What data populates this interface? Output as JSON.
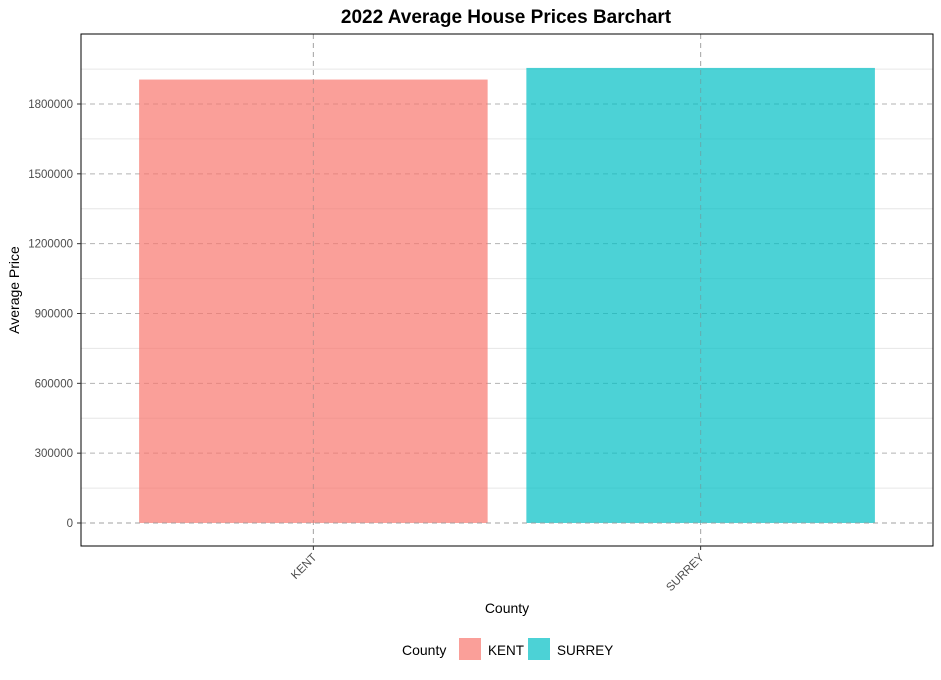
{
  "chart_data": {
    "type": "bar",
    "title": "2022 Average House Prices Barchart",
    "xlabel": "County",
    "ylabel": "Average Price",
    "categories": [
      "KENT",
      "SURREY"
    ],
    "values": [
      1905000,
      1955000
    ],
    "ylim": [
      -100000,
      2100000
    ],
    "y_ticks": [
      0,
      300000,
      600000,
      900000,
      1200000,
      1500000,
      1800000
    ],
    "y_tick_labels": [
      "0",
      "300000",
      "600000",
      "900000",
      "1200000",
      "1500000",
      "1800000"
    ],
    "colors": [
      "#F8766D",
      "#00BFC4"
    ],
    "bar_opacity": 0.7,
    "grid": "dashed major gridlines",
    "x_tick_rotation_deg": 45,
    "legend": {
      "title": "County",
      "position": "bottom",
      "entries": [
        "KENT",
        "SURREY"
      ]
    }
  }
}
